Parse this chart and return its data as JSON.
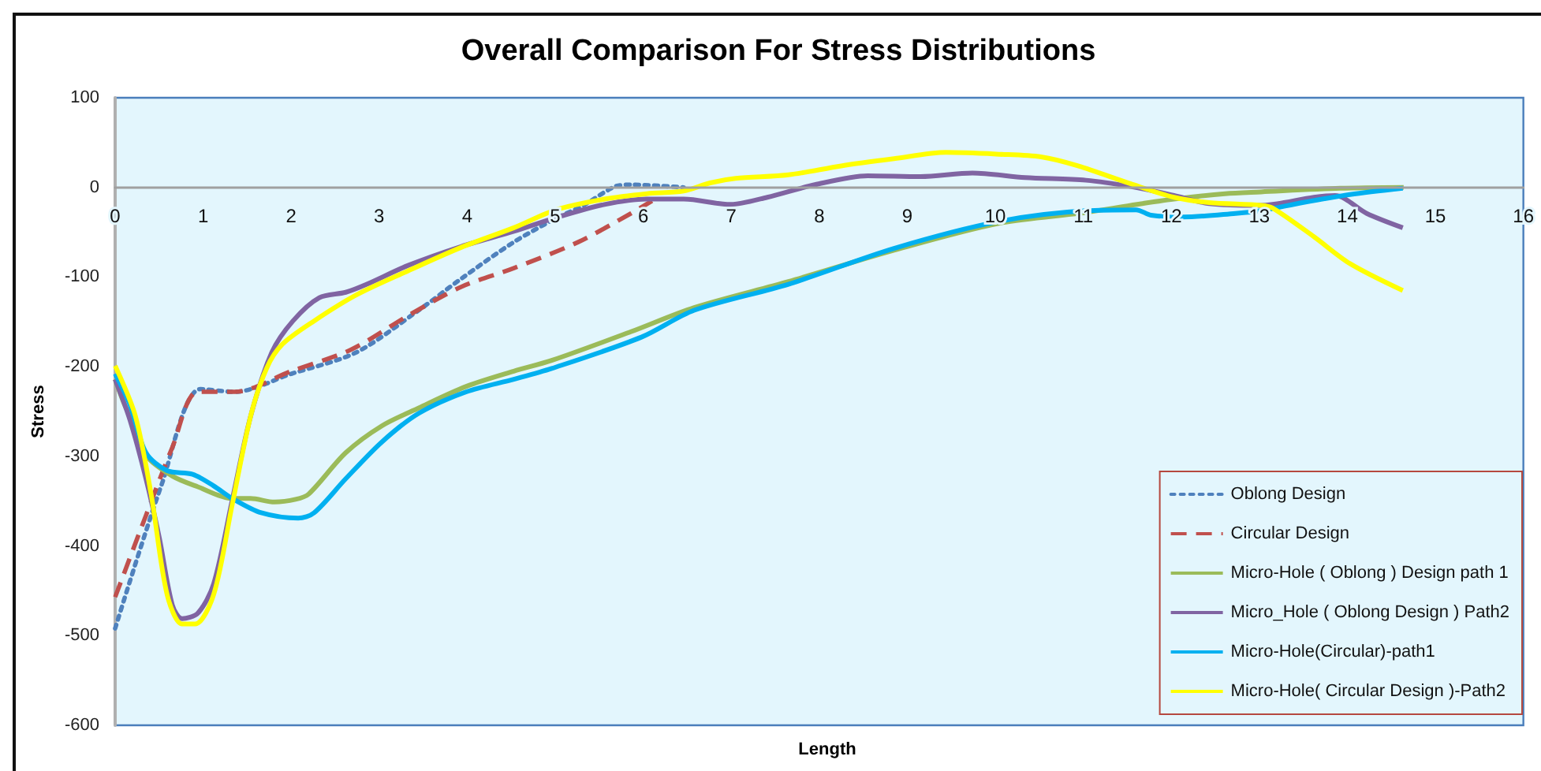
{
  "chart_data": {
    "type": "line",
    "title": "Overall Comparison For Stress Distributions",
    "xlabel": "Length",
    "ylabel": "Stress",
    "xlim": [
      0,
      16
    ],
    "xticks": [
      0,
      1,
      2,
      3,
      4,
      5,
      6,
      7,
      8,
      9,
      10,
      11,
      12,
      13,
      14,
      15,
      16
    ],
    "ylim": [
      -600,
      100
    ],
    "yticks": [
      -600,
      -500,
      -400,
      -300,
      -200,
      -100,
      0,
      100
    ],
    "legend": "bottom right",
    "marker": "none",
    "series": [
      {
        "name": "Oblong Design",
        "color": "#4f81bd",
        "line_style": "dotted",
        "x": [
          0,
          0.53,
          0.97,
          1.36,
          2.0,
          2.74,
          3.45,
          3.93,
          4.53,
          5.0,
          5.32,
          5.68,
          5.86,
          6.46
        ],
        "values": [
          -492,
          -331,
          -225,
          -228,
          -208,
          -184,
          -137,
          -102,
          -61,
          -35,
          -20,
          1,
          3,
          0
        ]
      },
      {
        "name": "Circular Design",
        "color": "#c0504d",
        "line_style": "dashed",
        "x": [
          0,
          0.35,
          0.65,
          0.94,
          1.36,
          2.0,
          2.68,
          3.33,
          3.93,
          4.53,
          5.26,
          5.86,
          6.1
        ],
        "values": [
          -457,
          -366,
          -290,
          -228,
          -228,
          -205,
          -181,
          -143,
          -111,
          -90,
          -61,
          -29,
          -15
        ]
      },
      {
        "name": "Micro-Hole ( Oblong ) Design path 1",
        "color": "#9bbb59",
        "line_style": "solid",
        "x": [
          0,
          0.11,
          0.23,
          0.35,
          0.65,
          0.94,
          1.33,
          1.54,
          1.81,
          2.05,
          2.2,
          2.62,
          3.03,
          3.45,
          3.99,
          4.53,
          4.96,
          5.86,
          6.58,
          7.65,
          8.85,
          10.04,
          11.03,
          11.54,
          12.03,
          12.61,
          13.02,
          13.92,
          14.64
        ],
        "values": [
          -214,
          -243,
          -266,
          -299,
          -322,
          -334,
          -347,
          -347,
          -351,
          -348,
          -342,
          -296,
          -266,
          -246,
          -222,
          -205,
          -193,
          -161,
          -134,
          -105,
          -70,
          -40,
          -28,
          -20,
          -13,
          -7,
          -5,
          -1,
          0
        ]
      },
      {
        "name": "Micro_Hole ( Oblong Design ) Path2",
        "color": "#8064a2",
        "line_style": "solid",
        "x": [
          0,
          0.17,
          0.35,
          0.5,
          0.65,
          0.76,
          0.94,
          1.12,
          1.33,
          1.54,
          1.78,
          2.02,
          2.32,
          2.62,
          2.86,
          3.33,
          3.93,
          4.53,
          5.0,
          5.56,
          6.04,
          6.46,
          6.99,
          7.41,
          7.95,
          8.55,
          9.15,
          9.74,
          10.34,
          11.03,
          11.54,
          12.03,
          12.43,
          13.02,
          13.62,
          13.86,
          14.22,
          14.63
        ],
        "values": [
          -214,
          -260,
          -325,
          -390,
          -466,
          -481,
          -475,
          -442,
          -349,
          -255,
          -184,
          -149,
          -123,
          -117,
          -108,
          -87,
          -66,
          -49,
          -34,
          -19,
          -13,
          -13,
          -19,
          -11,
          3,
          13,
          12,
          16,
          11,
          8,
          1,
          -9,
          -18,
          -20,
          -11,
          -9,
          -29,
          -45
        ]
      },
      {
        "name": "Micro-Hole(Circular)-path1",
        "color": "#00b0f0",
        "line_style": "solid",
        "x": [
          0,
          0.17,
          0.35,
          0.59,
          0.88,
          1.12,
          1.33,
          1.66,
          2.08,
          2.26,
          2.62,
          3.03,
          3.45,
          3.99,
          4.53,
          4.96,
          5.98,
          6.58,
          7.65,
          8.85,
          10.04,
          11.03,
          11.6,
          11.77,
          12.13,
          12.73,
          13.02,
          13.49,
          14.03,
          14.63
        ],
        "values": [
          -208,
          -243,
          -296,
          -316,
          -320,
          -333,
          -347,
          -363,
          -369,
          -363,
          -325,
          -284,
          -252,
          -228,
          -214,
          -202,
          -167,
          -137,
          -108,
          -68,
          -38,
          -26,
          -25,
          -31,
          -33,
          -29,
          -26,
          -17,
          -8,
          -1
        ]
      },
      {
        "name": "Micro-Hole( Circular Design )-Path2",
        "color": "#ffff00",
        "line_style": "solid",
        "x": [
          0,
          0.23,
          0.41,
          0.59,
          0.76,
          0.91,
          1.12,
          1.33,
          1.54,
          1.72,
          1.9,
          2.26,
          2.74,
          3.33,
          3.93,
          4.53,
          5.01,
          5.56,
          6.04,
          6.46,
          6.76,
          7.05,
          7.65,
          8.25,
          8.85,
          9.44,
          10.04,
          10.52,
          10.94,
          11.54,
          12.03,
          12.43,
          13.02,
          13.15,
          13.62,
          14.03,
          14.63
        ],
        "values": [
          -199,
          -255,
          -343,
          -454,
          -487,
          -487,
          -454,
          -354,
          -255,
          -202,
          -175,
          -149,
          -120,
          -93,
          -67,
          -45,
          -25,
          -13,
          -7,
          -4,
          5,
          10,
          14,
          24,
          32,
          39,
          37,
          34,
          24,
          4,
          -11,
          -17,
          -20,
          -23,
          -55,
          -85,
          -115
        ]
      }
    ]
  }
}
